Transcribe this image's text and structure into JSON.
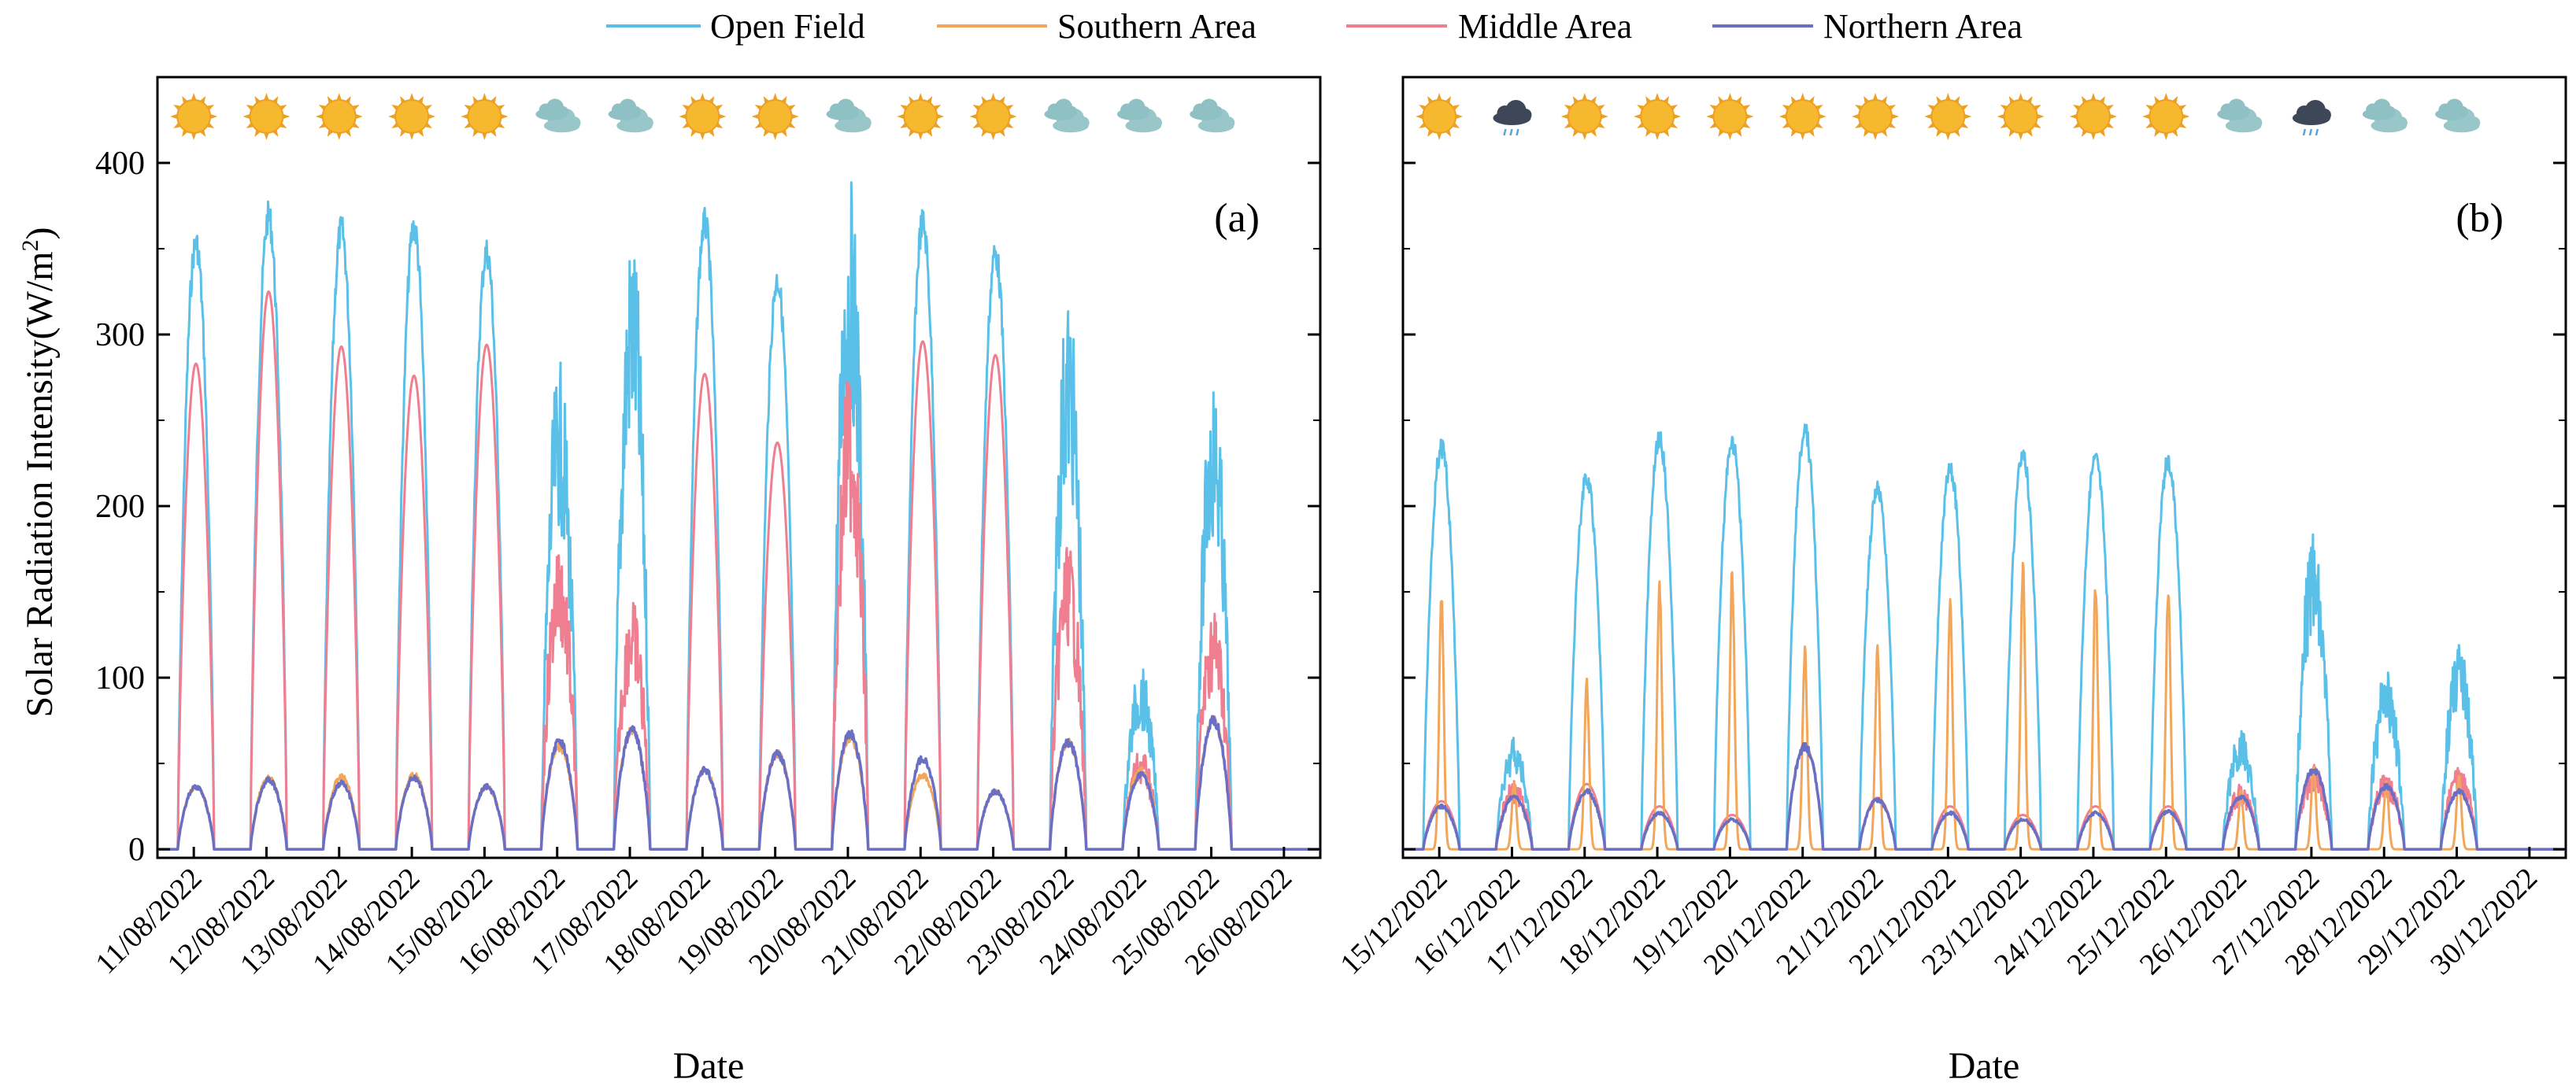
{
  "colors": {
    "open_field": "#5bc0e8",
    "southern_area": "#f2a65a",
    "middle_area": "#ef7f90",
    "northern_area": "#6a6fc4",
    "sun": "#f5b82e",
    "sun_edge": "#eda024",
    "cloud": "#8fc1c4",
    "rain_cloud": "#3e4758",
    "rain_drop": "#5aa2d8"
  },
  "legend": [
    {
      "key": "open_field",
      "label": "Open Field"
    },
    {
      "key": "southern_area",
      "label": "Southern Area"
    },
    {
      "key": "middle_area",
      "label": "Middle Area"
    },
    {
      "key": "northern_area",
      "label": "Northern Area"
    }
  ],
  "chart_data": [
    {
      "type": "line",
      "panel_label": "(a)",
      "xlabel": "Date",
      "ylabel": "Solar Radiation Intensity(W/m",
      "ylabel_superscript": "2",
      "ylabel_close": ")",
      "ylim": [
        -5,
        450
      ],
      "yticks": [
        0,
        100,
        200,
        300,
        400
      ],
      "xlim": [
        0,
        16
      ],
      "dates": [
        "11/08/2022",
        "12/08/2022",
        "13/08/2022",
        "14/08/2022",
        "15/08/2022",
        "16/08/2022",
        "17/08/2022",
        "18/08/2022",
        "19/08/2022",
        "20/08/2022",
        "21/08/2022",
        "22/08/2022",
        "23/08/2022",
        "24/08/2022",
        "25/08/2022",
        "26/08/2022"
      ],
      "weather": [
        "sunny",
        "sunny",
        "sunny",
        "sunny",
        "sunny",
        "cloudy",
        "cloudy",
        "sunny",
        "sunny",
        "cloudy",
        "sunny",
        "sunny",
        "cloudy",
        "cloudy",
        "cloudy"
      ],
      "series": [
        {
          "key": "open_field",
          "name": "Open Field",
          "daily_peaks": [
            362,
            378,
            370,
            372,
            357,
            285,
            362,
            374,
            340,
            391,
            374,
            356,
            325,
            107,
            275
          ]
        },
        {
          "key": "southern_area",
          "name": "Southern Area",
          "daily_peaks": [
            38,
            43,
            44,
            45,
            38,
            62,
            72,
            48,
            58,
            68,
            45,
            35,
            65,
            48,
            78
          ]
        },
        {
          "key": "middle_area",
          "name": "Middle Area",
          "daily_peaks": [
            283,
            325,
            293,
            276,
            294,
            180,
            148,
            277,
            237,
            283,
            296,
            288,
            180,
            58,
            142
          ]
        },
        {
          "key": "northern_area",
          "name": "Northern Area",
          "daily_peaks": [
            38,
            42,
            40,
            43,
            38,
            65,
            72,
            48,
            58,
            70,
            55,
            35,
            65,
            45,
            78
          ]
        }
      ]
    },
    {
      "type": "line",
      "panel_label": "(b)",
      "xlabel": "Date",
      "ylim": [
        -5,
        450
      ],
      "yticks": [
        0,
        100,
        200,
        300,
        400
      ],
      "xlim": [
        0,
        16
      ],
      "dates": [
        "15/12/2022",
        "16/12/2022",
        "17/12/2022",
        "18/12/2022",
        "19/12/2022",
        "20/12/2022",
        "21/12/2022",
        "22/12/2022",
        "23/12/2022",
        "24/12/2022",
        "25/12/2022",
        "26/12/2022",
        "27/12/2022",
        "28/12/2022",
        "29/12/2022",
        "30/12/2022"
      ],
      "weather": [
        "sunny",
        "rainy",
        "sunny",
        "sunny",
        "sunny",
        "sunny",
        "sunny",
        "sunny",
        "sunny",
        "sunny",
        "sunny",
        "cloudy",
        "rainy",
        "cloudy",
        "cloudy"
      ],
      "series": [
        {
          "key": "open_field",
          "name": "Open Field",
          "daily_peaks": [
            240,
            65,
            222,
            244,
            242,
            250,
            215,
            227,
            235,
            234,
            232,
            70,
            188,
            106,
            120
          ]
        },
        {
          "key": "southern_area",
          "name": "Southern Area",
          "daily_peaks": [
            150,
            40,
            100,
            162,
            167,
            120,
            122,
            152,
            170,
            160,
            158,
            35,
            50,
            40,
            45
          ]
        },
        {
          "key": "middle_area",
          "name": "Middle Area",
          "daily_peaks": [
            28,
            40,
            38,
            25,
            20,
            60,
            30,
            25,
            20,
            25,
            25,
            38,
            50,
            45,
            48
          ]
        },
        {
          "key": "northern_area",
          "name": "Northern Area",
          "daily_peaks": [
            26,
            32,
            35,
            22,
            18,
            62,
            30,
            22,
            18,
            22,
            23,
            32,
            48,
            38,
            35
          ]
        }
      ]
    }
  ]
}
